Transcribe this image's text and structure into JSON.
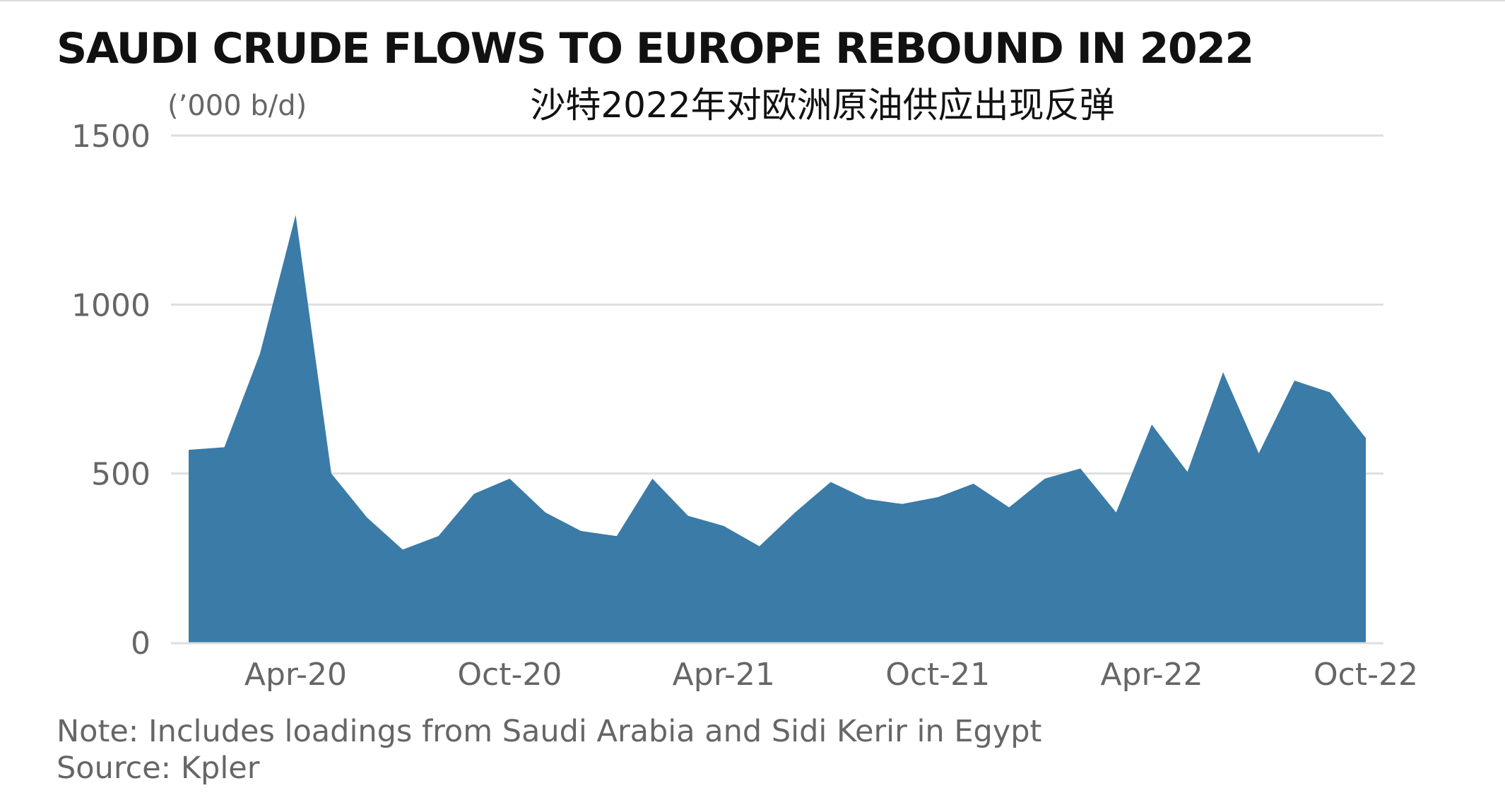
{
  "title": "SAUDI CRUDE FLOWS TO EUROPE REBOUND IN 2022",
  "subtitle_cn": "沙特2022年对欧洲原油供应出现反弹",
  "unit_label": "(’000 b/d)",
  "note": "Note: Includes loadings from Saudi Arabia and Sidi Kerir in Egypt",
  "source": "Source: Kpler",
  "colors": {
    "area": "#3a7ba8",
    "grid": "#dedede",
    "tick_text": "#666666",
    "title": "#111111"
  },
  "chart_data": {
    "type": "area",
    "title": "SAUDI CRUDE FLOWS TO EUROPE REBOUND IN 2022",
    "subtitle": "沙特2022年对欧洲原油供应出现反弹",
    "ylabel": "(’000 b/d)",
    "xlabel": "",
    "ylim": [
      0,
      1500
    ],
    "yticks": [
      0,
      500,
      1000,
      1500
    ],
    "grid": true,
    "x": [
      "Jan-20",
      "Feb-20",
      "Mar-20",
      "Apr-20",
      "May-20",
      "Jun-20",
      "Jul-20",
      "Aug-20",
      "Sep-20",
      "Oct-20",
      "Nov-20",
      "Dec-20",
      "Jan-21",
      "Feb-21",
      "Mar-21",
      "Apr-21",
      "May-21",
      "Jun-21",
      "Jul-21",
      "Aug-21",
      "Sep-21",
      "Oct-21",
      "Nov-21",
      "Dec-21",
      "Jan-22",
      "Feb-22",
      "Mar-22",
      "Apr-22",
      "May-22",
      "Jun-22",
      "Jul-22",
      "Aug-22",
      "Sep-22",
      "Oct-22"
    ],
    "xtick_labels": [
      "Apr-20",
      "Oct-20",
      "Apr-21",
      "Oct-21",
      "Apr-22",
      "Oct-22"
    ],
    "series": [
      {
        "values": [
          570,
          578,
          855,
          1265,
          500,
          370,
          275,
          315,
          440,
          485,
          385,
          330,
          315,
          485,
          375,
          345,
          285,
          385,
          475,
          425,
          410,
          430,
          470,
          400,
          485,
          515,
          385,
          645,
          505,
          800,
          560,
          775,
          740,
          605
        ]
      }
    ]
  }
}
